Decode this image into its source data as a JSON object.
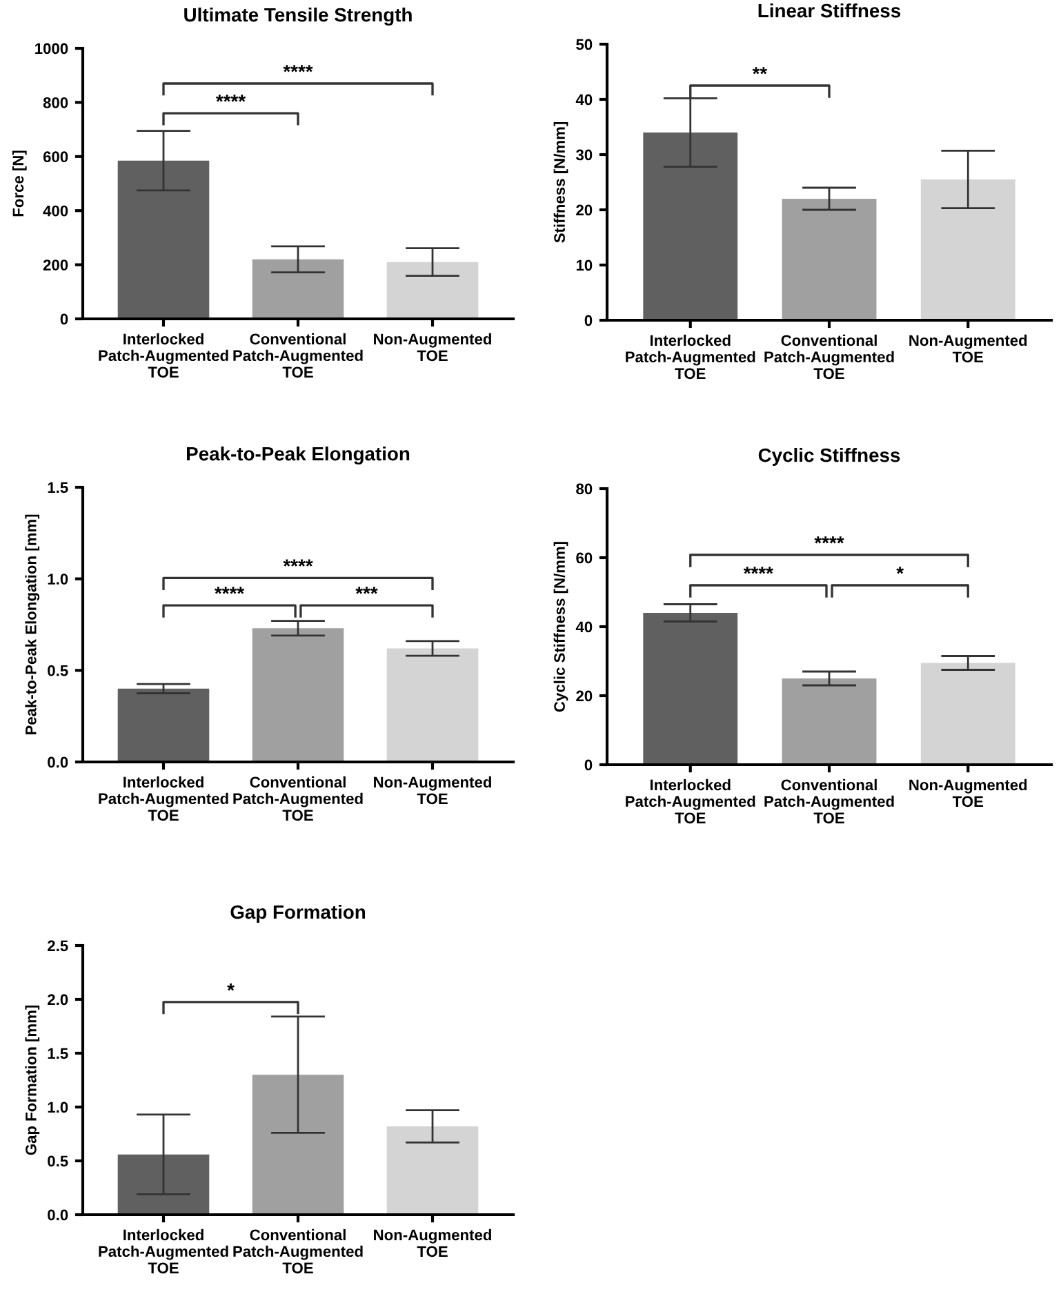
{
  "chart_data": [
    {
      "type": "bar",
      "title": "Ultimate Tensile Strength",
      "ylabel": "Force [N]",
      "categories": [
        "Interlocked\nPatch-Augmented\nTOE",
        "Conventional\nPatch-Augmented\nTOE",
        "Non-Augmented\nTOE"
      ],
      "values": [
        585,
        220,
        210
      ],
      "errors": [
        110,
        48,
        51
      ],
      "colors": [
        "#606060",
        "#a0a0a0",
        "#d4d4d4"
      ],
      "ylim": [
        0,
        1000
      ],
      "yticks": [
        0,
        200,
        400,
        600,
        800,
        1000
      ],
      "grid": false,
      "legend": false,
      "annotations": [
        "****",
        "****"
      ]
    },
    {
      "type": "bar",
      "title": "Linear Stiffness",
      "ylabel": "Stiffness [N/mm]",
      "categories": [
        "Interlocked\nPatch-Augmented\nTOE",
        "Conventional\nPatch-Augmented\nTOE",
        "Non-Augmented\nTOE"
      ],
      "values": [
        34,
        22,
        25.5
      ],
      "errors": [
        6.2,
        2,
        5.2
      ],
      "colors": [
        "#606060",
        "#a0a0a0",
        "#d4d4d4"
      ],
      "ylim": [
        0,
        50
      ],
      "yticks": [
        0,
        10,
        20,
        30,
        40,
        50
      ],
      "grid": false,
      "legend": false,
      "annotations": [
        "**"
      ]
    },
    {
      "type": "bar",
      "title": "Peak-to-Peak Elongation",
      "ylabel": "Peak-to-Peak Elongation [mm]",
      "categories": [
        "Interlocked\nPatch-Augmented\nTOE",
        "Conventional\nPatch-Augmented\nTOE",
        "Non-Augmented\nTOE"
      ],
      "values": [
        0.4,
        0.73,
        0.62
      ],
      "errors": [
        0.025,
        0.04,
        0.04
      ],
      "colors": [
        "#606060",
        "#a0a0a0",
        "#d4d4d4"
      ],
      "ylim": [
        0,
        1.5
      ],
      "yticks": [
        {
          "value": 0,
          "label": "0.0"
        },
        0.5,
        {
          "value": 1,
          "label": "1.0"
        },
        1.5
      ],
      "grid": false,
      "legend": false,
      "annotations": [
        "****",
        "***",
        "****"
      ]
    },
    {
      "type": "bar",
      "title": "Cyclic Stiffness",
      "ylabel": "Cyclic Stiffness [N/mm]",
      "categories": [
        "Interlocked\nPatch-Augmented\nTOE",
        "Conventional\nPatch-Augmented\nTOE",
        "Non-Augmented\nTOE"
      ],
      "values": [
        44,
        25,
        29.5
      ],
      "errors": [
        2.5,
        2,
        2
      ],
      "colors": [
        "#606060",
        "#a0a0a0",
        "#d4d4d4"
      ],
      "ylim": [
        0,
        80
      ],
      "yticks": [
        0,
        20,
        40,
        60,
        80
      ],
      "grid": false,
      "legend": false,
      "annotations": [
        "****",
        "*",
        "****"
      ]
    },
    {
      "type": "bar",
      "title": "Gap Formation",
      "ylabel": "Gap Formation [mm]",
      "categories": [
        "Interlocked\nPatch-Augmented\nTOE",
        "Conventional\nPatch-Augmented\nTOE",
        "Non-Augmented\nTOE"
      ],
      "values": [
        0.56,
        1.3,
        0.82
      ],
      "errors": [
        0.37,
        0.54,
        0.15
      ],
      "colors": [
        "#606060",
        "#a0a0a0",
        "#d4d4d4"
      ],
      "ylim": [
        0,
        2.5
      ],
      "yticks": [
        {
          "value": 0,
          "label": "0.0"
        },
        0.5,
        {
          "value": 1,
          "label": "1.0"
        },
        1.5,
        {
          "value": 2,
          "label": "2.0"
        },
        2.5
      ],
      "grid": false,
      "legend": false,
      "annotations": [
        "*"
      ]
    }
  ]
}
